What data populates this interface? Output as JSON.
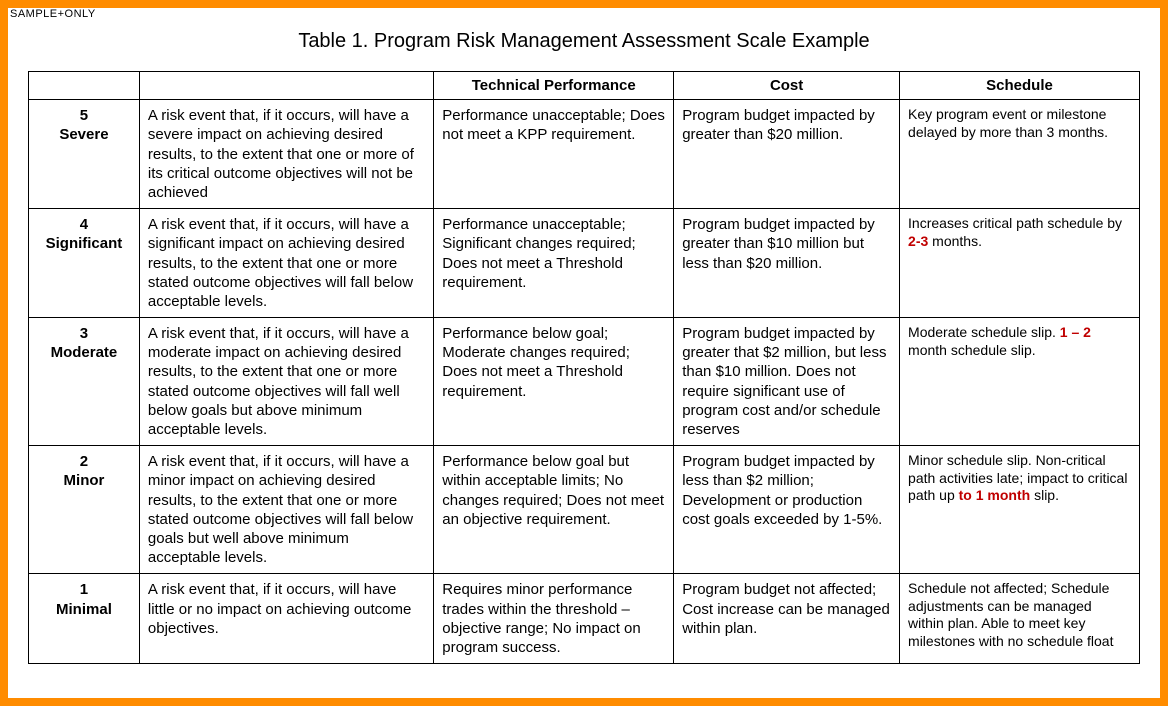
{
  "watermark": "SAMPLE+ONLY",
  "title": "Table 1. Program Risk Management Assessment Scale Example",
  "border_color": "#ff8c00",
  "highlight_color": "#c00000",
  "text_color": "#000000",
  "columns": {
    "level": "",
    "description": "",
    "technical": "Technical Performance",
    "cost": "Cost",
    "schedule": "Schedule"
  },
  "rows": [
    {
      "num": "5",
      "name": "Severe",
      "description": "A risk event that, if it occurs, will have a severe impact on achieving desired results, to the extent that one or more of its critical outcome objectives will not be achieved",
      "technical": "Performance unacceptable; Does not meet a KPP requirement.",
      "cost": "Program budget impacted by greater than $20 million.",
      "schedule_parts": [
        {
          "t": "Key program event or milestone delayed by more than 3 months."
        }
      ]
    },
    {
      "num": "4",
      "name": "Significant",
      "description": "A risk event that, if it occurs, will have a significant impact on achieving desired results, to the extent that one or more stated outcome objectives will fall below acceptable levels.",
      "technical": "Performance unacceptable; Significant changes required; Does not meet a Threshold requirement.",
      "cost": "Program budget impacted by greater than $10 million but less than $20 million.",
      "schedule_parts": [
        {
          "t": "Increases critical path schedule by "
        },
        {
          "t": "2-3",
          "hl": true
        },
        {
          "t": " months."
        }
      ]
    },
    {
      "num": "3",
      "name": "Moderate",
      "description": "A risk event that, if it occurs, will have a moderate impact on achieving desired results, to the extent that one or more stated outcome objectives will fall well below goals but above minimum acceptable levels.",
      "technical": "Performance below goal; Moderate changes required; Does not meet a Threshold requirement.",
      "cost": "Program budget impacted by greater that $2 million, but less than $10 million. Does not require significant use of program cost and/or schedule reserves",
      "schedule_parts": [
        {
          "t": "Moderate schedule slip. "
        },
        {
          "t": "1 – 2",
          "hl": true
        },
        {
          "t": " month schedule slip."
        }
      ]
    },
    {
      "num": "2",
      "name": "Minor",
      "description": "A risk event that, if it occurs, will have a minor impact on achieving desired results, to the extent that one or more stated outcome objectives will fall below goals but well above minimum acceptable levels.",
      "technical": "Performance below goal but within acceptable limits; No changes required; Does not meet an objective requirement.",
      "cost": "Program budget impacted by less than $2 million; Development or production cost goals exceeded by 1-5%.",
      "schedule_parts": [
        {
          "t": "Minor schedule slip. Non-critical path activities late; impact to critical path up "
        },
        {
          "t": "to 1 month",
          "hl": true
        },
        {
          "t": " slip."
        }
      ]
    },
    {
      "num": "1",
      "name": "Minimal",
      "description": "A risk event that, if it occurs, will have little or no impact on achieving outcome objectives.",
      "technical": "Requires minor performance trades within the threshold – objective range; No impact on program success.",
      "cost": "Program budget not affected; Cost increase can be managed within plan.",
      "schedule_parts": [
        {
          "t": "Schedule not affected; Schedule adjustments can be managed within plan. Able to meet key milestones with no schedule float"
        }
      ]
    }
  ]
}
